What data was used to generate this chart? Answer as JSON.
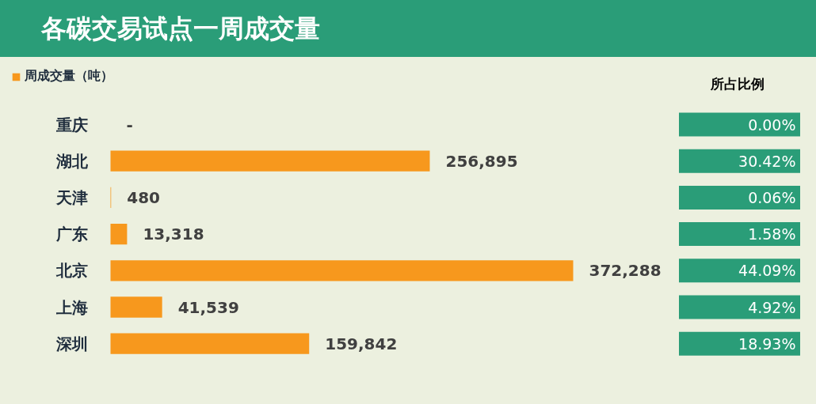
{
  "chart_data": {
    "type": "bar",
    "orientation": "horizontal",
    "title": "各碳交易试点一周成交量",
    "categories": [
      "重庆",
      "湖北",
      "天津",
      "广东",
      "北京",
      "上海",
      "深圳"
    ],
    "series": [
      {
        "name": "周成交量（吨）",
        "color": "#f7981d",
        "values": [
          0,
          256895,
          480,
          13318,
          372288,
          41539,
          159842
        ],
        "value_labels": [
          "-",
          "256,895",
          "480",
          "13,318",
          "372,288",
          "41,539",
          "159,842"
        ]
      }
    ],
    "annotations": [
      "所占比例",
      "0.00%",
      "30.42%",
      "0.06%",
      "1.58%",
      "44.09%",
      "4.92%",
      "18.93%"
    ],
    "legend": "top left",
    "grid": false
  }
}
